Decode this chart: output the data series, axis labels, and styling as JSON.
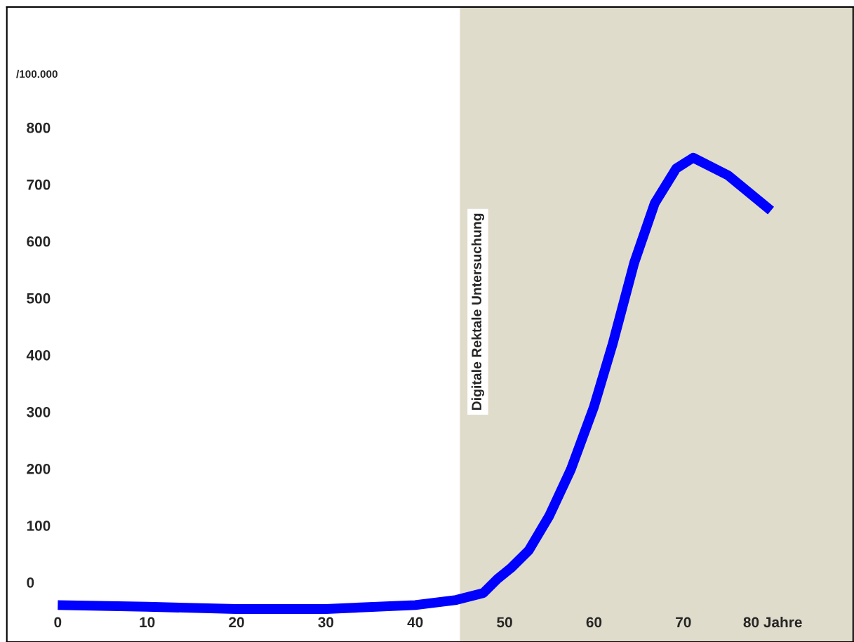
{
  "chart_data": {
    "type": "line",
    "ylabel": "/100.000",
    "x": [
      0,
      10,
      20,
      30,
      40,
      44.6,
      47.6,
      49.2,
      50.7,
      52.7,
      55,
      57.4,
      60,
      62.1,
      64.5,
      66.8,
      69.2,
      71.1,
      75,
      79.8
    ],
    "series": [
      {
        "color": "#0000ff",
        "values": [
          -40,
          -43,
          -47,
          -47,
          -40,
          -31,
          -19,
          6,
          25,
          56,
          117,
          198,
          309,
          420,
          562,
          667,
          728,
          747,
          716,
          654
        ]
      }
    ],
    "xlim": [
      -5.7,
      89
    ],
    "ylim": [
      -105,
      1012
    ],
    "xticks": [
      0,
      10,
      20,
      30,
      40,
      50,
      60,
      70,
      {
        "value": 80,
        "label": "80 Jahre"
      }
    ],
    "yticks": [
      0,
      100,
      200,
      300,
      400,
      500,
      600,
      700,
      800
    ],
    "bands": [
      {
        "axis": "x",
        "from": 45,
        "to": 89,
        "label": "Digitale Rektale Untersuchung",
        "color": "#e0dccb"
      }
    ],
    "grid": false,
    "legend": false,
    "marker": "none",
    "line_style": "solid"
  }
}
